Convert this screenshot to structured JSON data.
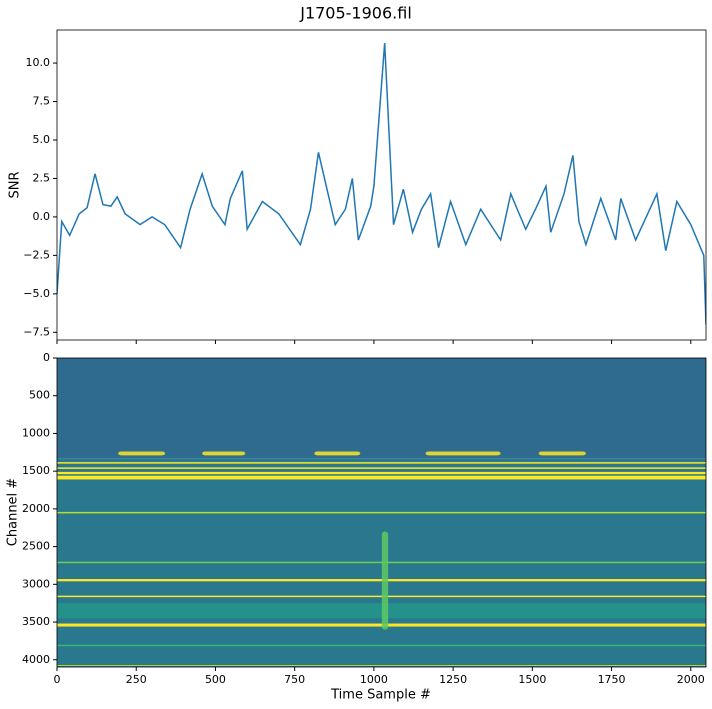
{
  "chart_data": [
    {
      "type": "line",
      "title": "J1705-1906.fil",
      "ylabel": "SNR",
      "color": "#1f77b4",
      "x": [
        0,
        15,
        40,
        70,
        95,
        120,
        145,
        170,
        190,
        215,
        262,
        300,
        340,
        390,
        420,
        458,
        490,
        530,
        547,
        585,
        600,
        648,
        700,
        768,
        800,
        825,
        878,
        910,
        932,
        951,
        990,
        1000,
        1034,
        1062,
        1093,
        1122,
        1150,
        1179,
        1204,
        1242,
        1290,
        1337,
        1400,
        1432,
        1479,
        1510,
        1543,
        1558,
        1600,
        1628,
        1647,
        1669,
        1716,
        1763,
        1779,
        1826,
        1893,
        1921,
        1956,
        2000,
        2041,
        2048
      ],
      "values": [
        -5.0,
        -0.3,
        -1.2,
        0.2,
        0.6,
        2.8,
        0.8,
        0.7,
        1.3,
        0.2,
        -0.5,
        0.0,
        -0.5,
        -2.0,
        0.5,
        2.8,
        0.7,
        -0.5,
        1.2,
        3.0,
        -0.8,
        1.0,
        0.2,
        -1.8,
        0.5,
        4.2,
        -0.5,
        0.5,
        2.5,
        -1.5,
        0.7,
        2.0,
        11.3,
        -0.5,
        1.8,
        -1.0,
        0.5,
        1.5,
        -2.0,
        1.0,
        -1.8,
        0.5,
        -1.5,
        1.5,
        -0.8,
        0.5,
        2.0,
        -1.0,
        1.5,
        4.0,
        -0.3,
        -1.8,
        1.2,
        -1.5,
        1.2,
        -1.5,
        1.5,
        -2.2,
        1.0,
        -0.5,
        -2.5,
        -7.0
      ],
      "xlim": [
        0,
        2048
      ],
      "xticks": [
        0,
        250,
        500,
        750,
        1000,
        1250,
        1500,
        1750,
        2000
      ],
      "ylim": [
        -8.0,
        12.15
      ],
      "yticks": [
        {
          "value": -7.5,
          "label": "−7.5"
        },
        {
          "value": -5,
          "label": "−5.0"
        },
        {
          "value": -2.5,
          "label": "−2.5"
        },
        {
          "value": 0,
          "label": "0.0"
        },
        2.5,
        {
          "value": 5,
          "label": "5.0"
        },
        7.5,
        {
          "value": 10,
          "label": "10.0"
        }
      ]
    },
    {
      "type": "heatmap",
      "xlabel": "Time Sample #",
      "ylabel": "Channel #",
      "xlim": [
        0,
        2048
      ],
      "xticks": [
        0,
        250,
        500,
        750,
        1000,
        1250,
        1500,
        1750,
        2000
      ],
      "ylim": [
        4096,
        0
      ],
      "yticks": [
        0,
        500,
        1000,
        1500,
        2000,
        2500,
        3000,
        3500,
        4000
      ],
      "bands": [
        {
          "start": 0,
          "end": 1330,
          "color": "#2f6b8e"
        },
        {
          "start": 1330,
          "end": 4096,
          "color": "#2a788e"
        },
        {
          "start": 3250,
          "end": 3450,
          "color": "#24918b"
        },
        {
          "start": 1380,
          "end": 1400,
          "color": "#fde725"
        },
        {
          "start": 1450,
          "end": 1470,
          "color": "#fde725"
        },
        {
          "start": 1510,
          "end": 1540,
          "color": "#fde725"
        },
        {
          "start": 1560,
          "end": 1610,
          "color": "#fde725"
        },
        {
          "start": 2040,
          "end": 2060,
          "color": "#b5de2b"
        },
        {
          "start": 2700,
          "end": 2720,
          "color": "#6ece58"
        },
        {
          "start": 2930,
          "end": 2960,
          "color": "#fde725"
        },
        {
          "start": 3150,
          "end": 3170,
          "color": "#fde725"
        },
        {
          "start": 3520,
          "end": 3560,
          "color": "#fde725"
        },
        {
          "start": 3800,
          "end": 3820,
          "color": "#35b779"
        },
        {
          "start": 4070,
          "end": 4080,
          "color": "#b5de2b"
        }
      ],
      "blobs": [
        {
          "x0": 193,
          "x1": 341,
          "start": 1240,
          "end": 1290,
          "color": "#fde725"
        },
        {
          "x0": 458,
          "x1": 594,
          "start": 1240,
          "end": 1290,
          "color": "#fde725"
        },
        {
          "x0": 812,
          "x1": 957,
          "start": 1240,
          "end": 1290,
          "color": "#fde725"
        },
        {
          "x0": 1163,
          "x1": 1400,
          "start": 1240,
          "end": 1290,
          "color": "#fde725"
        },
        {
          "x0": 1520,
          "x1": 1669,
          "start": 1240,
          "end": 1290,
          "color": "#fde725"
        },
        {
          "x0": 1025,
          "x1": 1045,
          "start": 2300,
          "end": 3600,
          "color": "#5ec962"
        }
      ]
    }
  ]
}
